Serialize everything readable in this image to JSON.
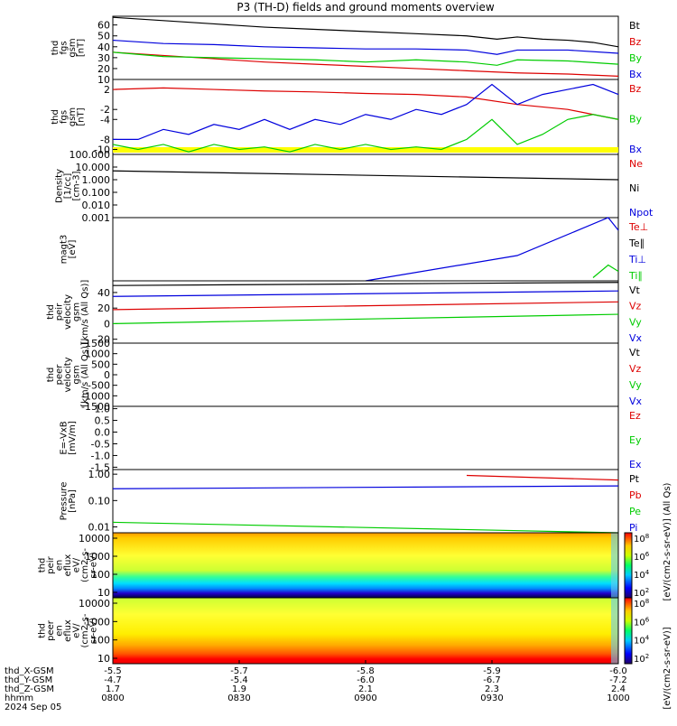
{
  "title": "P3 (TH-D) fields and ground moments overview",
  "colors": {
    "black": "#000000",
    "red": "#dd0000",
    "green": "#00cc00",
    "blue": "#0000dd",
    "yellow": "#ffff00"
  },
  "chart_data": [
    {
      "type": "line",
      "panel": "fgs_gsm",
      "ylabel": [
        "thd",
        "fgs",
        "gsm",
        "[nT]"
      ],
      "yticks": [
        "60",
        "50",
        "40",
        "30",
        "20",
        "10"
      ],
      "ylim": [
        10,
        68
      ],
      "legend": [
        {
          "label": "Bt",
          "color": "black"
        },
        {
          "label": "Bz",
          "color": "red"
        },
        {
          "label": "By",
          "color": "green"
        },
        {
          "label": "Bx",
          "color": "blue"
        }
      ],
      "series": [
        {
          "name": "Bt",
          "color": "black",
          "x": [
            0,
            0.1,
            0.2,
            0.3,
            0.4,
            0.5,
            0.6,
            0.7,
            0.76,
            0.8,
            0.85,
            0.9,
            0.95,
            1.0
          ],
          "y": [
            67,
            64,
            61,
            58,
            56,
            54,
            52,
            50,
            47,
            49,
            47,
            46,
            44,
            40
          ]
        },
        {
          "name": "Bz",
          "color": "red",
          "x": [
            0,
            0.1,
            0.2,
            0.3,
            0.4,
            0.5,
            0.6,
            0.7,
            0.8,
            0.9,
            1.0
          ],
          "y": [
            35,
            32,
            29,
            26,
            24,
            22,
            20,
            18,
            16,
            15,
            13
          ]
        },
        {
          "name": "By",
          "color": "green",
          "x": [
            0,
            0.1,
            0.2,
            0.3,
            0.4,
            0.5,
            0.6,
            0.7,
            0.76,
            0.8,
            0.9,
            1.0
          ],
          "y": [
            35,
            31,
            30,
            29,
            28,
            26,
            28,
            26,
            23,
            28,
            27,
            24
          ]
        },
        {
          "name": "Bx",
          "color": "blue",
          "x": [
            0,
            0.1,
            0.2,
            0.3,
            0.4,
            0.5,
            0.6,
            0.7,
            0.76,
            0.8,
            0.9,
            1.0
          ],
          "y": [
            46,
            43,
            42,
            40,
            39,
            38,
            38,
            37,
            33,
            37,
            37,
            34
          ]
        }
      ]
    },
    {
      "type": "line",
      "panel": "fgs_gse",
      "ylabel": [
        "thd",
        "fgs",
        "gsm",
        "[nT]"
      ],
      "yticks": [
        "2",
        "-2",
        "-4",
        "-8",
        "-10"
      ],
      "ylim": [
        -11,
        4
      ],
      "legend": [
        {
          "label": "Bz",
          "color": "red"
        },
        {
          "label": "By",
          "color": "green"
        },
        {
          "label": "Bx",
          "color": "blue"
        }
      ],
      "series": [
        {
          "name": "Bz",
          "color": "red",
          "x": [
            0,
            0.1,
            0.2,
            0.3,
            0.4,
            0.5,
            0.6,
            0.7,
            0.8,
            0.9,
            0.95,
            1.0
          ],
          "y": [
            2,
            2.3,
            2,
            1.7,
            1.5,
            1.2,
            1,
            0.5,
            -1,
            -2,
            -3,
            -4
          ]
        },
        {
          "name": "By",
          "color": "green",
          "x": [
            0,
            0.05,
            0.1,
            0.15,
            0.2,
            0.25,
            0.3,
            0.35,
            0.4,
            0.45,
            0.5,
            0.55,
            0.6,
            0.65,
            0.7,
            0.75,
            0.8,
            0.85,
            0.9,
            0.95,
            1.0
          ],
          "y": [
            -9,
            -10,
            -9,
            -10.5,
            -9,
            -10,
            -9.5,
            -10.5,
            -9,
            -10,
            -9,
            -10,
            -9.5,
            -10,
            -8,
            -4,
            -9,
            -7,
            -4,
            -3,
            -4
          ]
        },
        {
          "name": "Bx",
          "color": "blue",
          "x": [
            0,
            0.05,
            0.1,
            0.15,
            0.2,
            0.25,
            0.3,
            0.35,
            0.4,
            0.45,
            0.5,
            0.55,
            0.6,
            0.65,
            0.7,
            0.75,
            0.8,
            0.85,
            0.9,
            0.95,
            1.0
          ],
          "y": [
            -8,
            -8,
            -6,
            -7,
            -5,
            -6,
            -4,
            -6,
            -4,
            -5,
            -3,
            -4,
            -2,
            -3,
            -1,
            3,
            -1,
            1,
            2,
            3,
            1
          ]
        }
      ]
    },
    {
      "type": "line",
      "panel": "density",
      "scale": "log",
      "ylabel": [
        "Density",
        "[1/cc]",
        "[cm-3]"
      ],
      "yticks": [
        "100.000",
        "10.000",
        "1.000",
        "0.100",
        "0.010",
        "0.001"
      ],
      "ylim": [
        0.001,
        100
      ],
      "legend": [
        {
          "label": "Ne",
          "color": "red"
        },
        {
          "label": "Ni",
          "color": "black"
        },
        {
          "label": "Npot",
          "color": "blue"
        }
      ],
      "series": [
        {
          "name": "Ni",
          "color": "black",
          "x": [
            0,
            1
          ],
          "y": [
            5,
            1
          ]
        }
      ]
    },
    {
      "type": "line",
      "panel": "temperature",
      "ylabel": [
        "magt3",
        "[eV]"
      ],
      "legend": [
        {
          "label": "Te⊥",
          "color": "red"
        },
        {
          "label": "Te∥",
          "color": "black"
        },
        {
          "label": "Ti⊥",
          "color": "blue"
        },
        {
          "label": "Ti∥",
          "color": "green"
        }
      ],
      "series": [
        {
          "name": "Ti⊥",
          "color": "blue",
          "x": [
            0.5,
            0.8,
            0.98,
            1.0
          ],
          "y": [
            0,
            0.4,
            1,
            0.8
          ]
        },
        {
          "name": "Ti∥",
          "color": "green",
          "x": [
            0.95,
            0.98,
            1.0
          ],
          "y": [
            0.05,
            0.25,
            0.15
          ]
        }
      ]
    },
    {
      "type": "line",
      "panel": "peir_velocity",
      "ylabel": [
        "thd",
        "peir",
        "velocity",
        "gsm",
        "[km/s (All Qs)]"
      ],
      "yticks": [
        "40",
        "20",
        "0",
        "-20"
      ],
      "ylim": [
        -25,
        55
      ],
      "legend": [
        {
          "label": "Vt",
          "color": "black"
        },
        {
          "label": "Vz",
          "color": "red"
        },
        {
          "label": "Vy",
          "color": "green"
        },
        {
          "label": "Vx",
          "color": "blue"
        }
      ],
      "series": [
        {
          "name": "Vt",
          "color": "black",
          "x": [
            0,
            1
          ],
          "y": [
            49,
            53
          ]
        },
        {
          "name": "Vx",
          "color": "blue",
          "x": [
            0,
            1
          ],
          "y": [
            35,
            42
          ]
        },
        {
          "name": "Vz",
          "color": "red",
          "x": [
            0,
            1
          ],
          "y": [
            18,
            28
          ]
        },
        {
          "name": "Vy",
          "color": "green",
          "x": [
            0,
            1
          ],
          "y": [
            0,
            12
          ]
        }
      ]
    },
    {
      "type": "line",
      "panel": "peer_velocity",
      "ylabel": [
        "thd",
        "peer",
        "velocity",
        "gsm",
        "[km/s (All Qs)]"
      ],
      "yticks": [
        "1500",
        "1000",
        "500",
        "0",
        "-500",
        "-1000",
        "-1500"
      ],
      "ylim": [
        -1500,
        1500
      ],
      "legend": [
        {
          "label": "Vt",
          "color": "black"
        },
        {
          "label": "Vz",
          "color": "red"
        },
        {
          "label": "Vy",
          "color": "green"
        },
        {
          "label": "Vx",
          "color": "blue"
        }
      ],
      "series": []
    },
    {
      "type": "line",
      "panel": "efield",
      "ylabel": [
        "E=-VxB",
        "[mV/m]"
      ],
      "yticks": [
        "1.0",
        "0.5",
        "0.0",
        "-0.5",
        "-1.0",
        "-1.5"
      ],
      "ylim": [
        -1.6,
        1.1
      ],
      "legend": [
        {
          "label": "Ez",
          "color": "red"
        },
        {
          "label": "Ey",
          "color": "green"
        },
        {
          "label": "Ex",
          "color": "blue"
        }
      ],
      "series": []
    },
    {
      "type": "line",
      "panel": "pressure",
      "scale": "log",
      "ylabel": [
        "Pressure",
        "[nPa]"
      ],
      "yticks": [
        "1.00",
        "0.10",
        "0.01"
      ],
      "ylim": [
        0.006,
        1.5
      ],
      "legend": [
        {
          "label": "Pt",
          "color": "black"
        },
        {
          "label": "Pb",
          "color": "red"
        },
        {
          "label": "Pe",
          "color": "green"
        },
        {
          "label": "Pi",
          "color": "blue"
        }
      ],
      "series": [
        {
          "name": "Pb",
          "color": "red",
          "x": [
            0.7,
            1.0
          ],
          "y": [
            0.9,
            0.6
          ]
        },
        {
          "name": "Pi",
          "color": "blue",
          "x": [
            0,
            1
          ],
          "y": [
            0.28,
            0.36
          ]
        },
        {
          "name": "Pe",
          "color": "green",
          "x": [
            0,
            1
          ],
          "y": [
            0.015,
            0.006
          ]
        }
      ]
    },
    {
      "type": "heatmap",
      "panel": "peir_eflux",
      "ylabel": [
        "thd",
        "peir",
        "en",
        "eflux",
        "eV/",
        "(cm2-s-",
        "sr-eV)"
      ],
      "yticks": [
        "10000",
        "1000",
        "100",
        "10"
      ],
      "colorbar_ticks": [
        "10^8",
        "10^6",
        "10^4",
        "10^2"
      ],
      "colorbar_label": "[eV/(cm2-s-sr-eV)] (All Qs)"
    },
    {
      "type": "heatmap",
      "panel": "peer_eflux",
      "ylabel": [
        "thd",
        "peer",
        "en",
        "eflux",
        "eV/",
        "(cm2-s-",
        "sr-eV)"
      ],
      "yticks": [
        "10000",
        "1000",
        "100",
        "10"
      ],
      "colorbar_ticks": [
        "10^8",
        "10^6",
        "10^4",
        "10^2"
      ],
      "colorbar_label": "[eV/(cm2-s-sr-eV)]"
    }
  ],
  "xaxis": {
    "rows": [
      {
        "label": "thd_X-GSM",
        "values": [
          "-5.5",
          "-5.7",
          "-5.8",
          "-5.9",
          "-6.0"
        ]
      },
      {
        "label": "thd_Y-GSM",
        "values": [
          "-4.7",
          "-5.4",
          "-6.0",
          "-6.7",
          "-7.2"
        ]
      },
      {
        "label": "thd_Z-GSM",
        "values": [
          "1.7",
          "1.9",
          "2.1",
          "2.3",
          "2.4"
        ]
      },
      {
        "label": "hhmm",
        "values": [
          "0800",
          "0830",
          "0900",
          "0930",
          "1000"
        ]
      }
    ],
    "date": "2024 Sep 05"
  }
}
